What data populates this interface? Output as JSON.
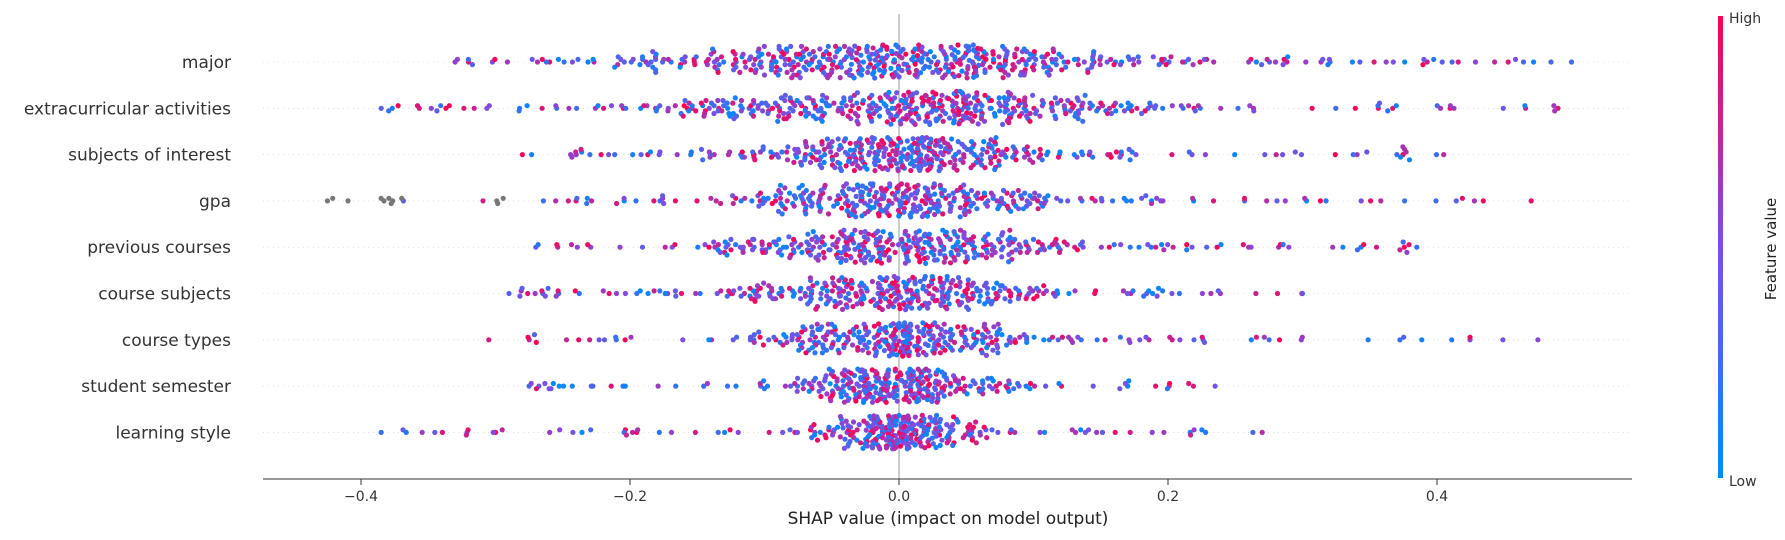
{
  "chart_data": {
    "type": "scatter",
    "subtype": "beeswarm",
    "title": "",
    "xlabel": "SHAP value (impact on model output)",
    "ylabel": "",
    "xlim": [
      -0.48,
      0.54
    ],
    "xticks": [
      -0.4,
      -0.2,
      0.0,
      0.2,
      0.4
    ],
    "xtick_labels": [
      "−0.4",
      "−0.2",
      "0.0",
      "0.2",
      "0.4"
    ],
    "features": [
      {
        "name": "major",
        "range": [
          -0.33,
          0.5
        ],
        "spread": 0.11,
        "points": 520
      },
      {
        "name": "extracurricular activities",
        "range": [
          -0.385,
          0.49
        ],
        "spread": 0.11,
        "points": 480
      },
      {
        "name": "subjects of interest",
        "range": [
          -0.28,
          0.405
        ],
        "spread": 0.07,
        "points": 400
      },
      {
        "name": "gpa",
        "range": [
          -0.425,
          0.47
        ],
        "spread": 0.065,
        "points": 380
      },
      {
        "name": "previous courses",
        "range": [
          -0.27,
          0.385
        ],
        "spread": 0.08,
        "points": 380
      },
      {
        "name": "course subjects",
        "range": [
          -0.29,
          0.3
        ],
        "spread": 0.065,
        "points": 360
      },
      {
        "name": "course types",
        "range": [
          -0.305,
          0.475
        ],
        "spread": 0.06,
        "points": 350
      },
      {
        "name": "student semester",
        "range": [
          -0.275,
          0.235
        ],
        "spread": 0.04,
        "points": 330
      },
      {
        "name": "learning style",
        "range": [
          -0.385,
          0.27
        ],
        "spread": 0.03,
        "points": 320
      }
    ],
    "colorbar": {
      "label": "Feature value",
      "high_label": "High",
      "low_label": "Low",
      "high_color": "#ff0052",
      "low_color": "#008bfb"
    },
    "missing_value_color": "#777777",
    "grid": false,
    "legend": "colorbar-right"
  }
}
